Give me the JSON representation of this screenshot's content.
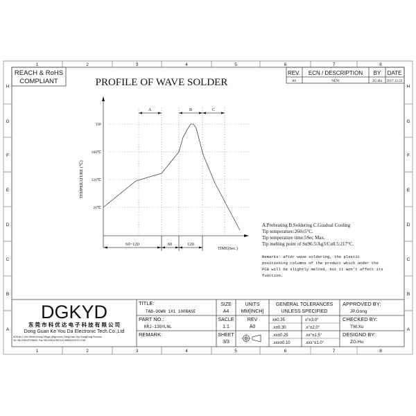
{
  "frame": {
    "columns": [
      "1",
      "2",
      "3",
      "4",
      "5",
      "6",
      "7",
      "8"
    ],
    "rows": [
      "H",
      "G",
      "F",
      "E",
      "D",
      "C",
      "B",
      "A"
    ]
  },
  "header": {
    "compliance": [
      "REACH & RoHS",
      "COMPLIANT"
    ],
    "title": "PROFILE OF WAVE SOLDER",
    "revision_table": {
      "headers": [
        "REV.",
        "ECN / DESCRIPTION",
        "BY",
        "DATE"
      ],
      "row": [
        "A0",
        "NEW",
        "ZG.Hu",
        "2017.12.22"
      ]
    }
  },
  "chart": {
    "y_axis_label": "TEMPERATURE (℃)",
    "x_axis_label": "TIME(Sec.)",
    "y_ticks": [
      "TIP",
      "180℃",
      "120℃",
      "20℃"
    ],
    "zones": [
      "A",
      "B",
      "C"
    ],
    "durations": [
      "60~120",
      "60",
      "120"
    ]
  },
  "notes": {
    "lines": [
      "A.Preheating  B.Soldering  C.Gradual Cooling",
      "Tip temperature:260±5°C.",
      "Tip temperature time:5Sec Max.",
      "Tip melting point of Sn96.5/Ag3/Cu0.5:217°C."
    ],
    "remarks": [
      "Remarks: after wave soldering, the plastic",
      "positioning columns of the product  which under the",
      "PCB will be slightly melted, but it won't affect its",
      "function."
    ]
  },
  "title_block": {
    "logo": "DGKYD",
    "company_cn": "东 莞 市 科 优 达 电 子 科 技 有 限 公 司",
    "company_en": "Dong Guan Ke You Da Electronic Tech.Co.,Ltd",
    "address": "ADD:No.1 Lihe Street,Lihang Village,Qingxi town, DongGuan City,GuangDong Province",
    "contact": "Tel:+86-0769-87234600, Fax:+86-0769-87847120  WWW.DGKYD.COM",
    "title_label": "TITLE:",
    "title_value": "TAB-DOWN 1X1 100BASE",
    "part_label": "PART NO.:",
    "part_value": "KRJ-13GYLNL",
    "remark_label": "REMARK:",
    "size_label": "SIZE",
    "size_value": "A4",
    "units_label": "UNITS",
    "units_value": "MM[INCH]",
    "scale_label": "SACLE",
    "scale_value": "1:1",
    "rev_label": "REV",
    "rev_value": "A0",
    "sheet_label": "SHEET",
    "sheet_value": "3/3",
    "tolerance_header": [
      "GENERAL TOLERANCES",
      "UNLESS SPECIFIED"
    ],
    "tolerances": [
      [
        "x±0.35",
        "x°±3.0°"
      ],
      [
        ".x±0.30",
        ".x°±2.0°"
      ],
      [
        ".xx±0.25",
        ".xx°±1.5°"
      ],
      [
        ".xxx±0.10",
        ".xxx°±1.0°"
      ]
    ],
    "approved_label": "APPROVED BY:",
    "approved_value": "JP.Gong",
    "checked_label": "CHECKED BY:",
    "checked_value": "TW.Xu",
    "designed_label": "DESIGND BY:",
    "designed_value": "ZG.Hu"
  }
}
